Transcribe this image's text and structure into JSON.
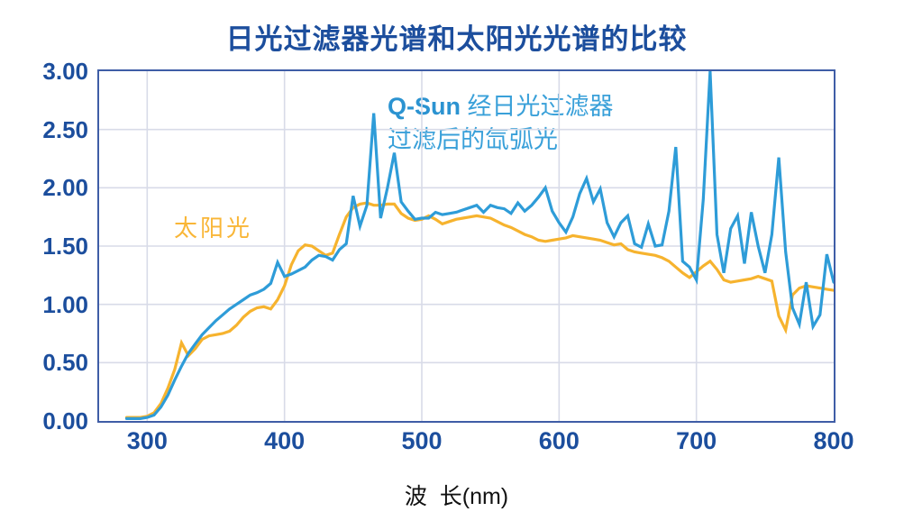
{
  "title": "日光过滤器光谱和太阳光光谱的比较",
  "colors": {
    "title_text": "#1c4e9d",
    "tick_text": "#1c4e9d",
    "plot_border": "#3f5da6",
    "gridline": "#d8dbe8",
    "qsun_line": "#2e9cd8",
    "sunlight_line": "#f6b32e",
    "qsun_label_text": "#39a0d9",
    "sunlight_label_text": "#f9b637",
    "x_axis_title_text": "#111111"
  },
  "legend": {
    "qsun_bold": "Q-Sun",
    "qsun_rest": " 经日光过滤器",
    "qsun_line2": "过滤后的氙弧光",
    "sunlight": "太阳光"
  },
  "x_axis": {
    "title": "波  长(nm)",
    "tick_labels": [
      "300",
      "400",
      "500",
      "600",
      "700",
      "800"
    ],
    "tick_values": [
      300,
      400,
      500,
      600,
      700,
      800
    ]
  },
  "y_axis": {
    "tick_labels": [
      "3.00",
      "2.50",
      "2.00",
      "1.50",
      "1.00",
      "0.50",
      "0.00"
    ],
    "tick_values": [
      3.0,
      2.5,
      2.0,
      1.5,
      1.0,
      0.5,
      0.0
    ]
  },
  "chart_data": {
    "type": "line",
    "title": "日光过滤器光谱和太阳光光谱的比较",
    "xlabel": "波 长(nm)",
    "ylabel": "",
    "xlim": [
      265,
      800
    ],
    "ylim": [
      0,
      3.0
    ],
    "x_gridlines": [
      300,
      400,
      500,
      600,
      700
    ],
    "y_gridlines": [
      0.5,
      1.0,
      1.5,
      2.0,
      2.5
    ],
    "grid": true,
    "legend_position": "annotations-inside",
    "x": [
      285,
      290,
      295,
      300,
      305,
      310,
      315,
      320,
      325,
      330,
      335,
      340,
      345,
      350,
      355,
      360,
      365,
      370,
      375,
      380,
      385,
      390,
      395,
      400,
      405,
      410,
      415,
      420,
      425,
      430,
      435,
      440,
      445,
      450,
      455,
      460,
      465,
      470,
      475,
      480,
      485,
      490,
      495,
      500,
      505,
      510,
      515,
      520,
      525,
      530,
      535,
      540,
      545,
      550,
      555,
      560,
      565,
      570,
      575,
      580,
      585,
      590,
      595,
      600,
      605,
      610,
      615,
      620,
      625,
      630,
      635,
      640,
      645,
      650,
      655,
      660,
      665,
      670,
      675,
      680,
      685,
      690,
      695,
      700,
      705,
      710,
      715,
      720,
      725,
      730,
      735,
      740,
      745,
      750,
      755,
      760,
      765,
      770,
      775,
      780,
      785,
      790,
      795,
      800
    ],
    "series": [
      {
        "name": "Q-Sun 经日光过滤器过滤后的氙弧光",
        "color": "#2e9cd8",
        "values": [
          0.02,
          0.02,
          0.02,
          0.03,
          0.05,
          0.12,
          0.22,
          0.35,
          0.47,
          0.58,
          0.66,
          0.74,
          0.8,
          0.86,
          0.91,
          0.96,
          1.0,
          1.04,
          1.08,
          1.1,
          1.13,
          1.18,
          1.36,
          1.24,
          1.26,
          1.29,
          1.32,
          1.38,
          1.42,
          1.41,
          1.38,
          1.47,
          1.52,
          1.93,
          1.67,
          1.85,
          2.64,
          1.74,
          2.0,
          2.3,
          1.88,
          1.8,
          1.73,
          1.74,
          1.74,
          1.79,
          1.77,
          1.78,
          1.79,
          1.81,
          1.83,
          1.85,
          1.79,
          1.85,
          1.83,
          1.82,
          1.78,
          1.87,
          1.8,
          1.85,
          1.92,
          2.0,
          1.8,
          1.7,
          1.62,
          1.75,
          1.95,
          2.08,
          1.88,
          1.99,
          1.7,
          1.58,
          1.7,
          1.76,
          1.52,
          1.49,
          1.69,
          1.5,
          1.51,
          1.8,
          2.35,
          1.37,
          1.32,
          1.21,
          1.9,
          3.0,
          1.6,
          1.27,
          1.65,
          1.76,
          1.35,
          1.79,
          1.5,
          1.27,
          1.6,
          2.26,
          1.45,
          0.97,
          0.83,
          1.19,
          0.81,
          0.91,
          1.43,
          1.19
        ]
      },
      {
        "name": "太阳光",
        "color": "#f6b32e",
        "values": [
          0.03,
          0.03,
          0.03,
          0.04,
          0.07,
          0.15,
          0.28,
          0.44,
          0.67,
          0.56,
          0.62,
          0.7,
          0.73,
          0.74,
          0.75,
          0.77,
          0.82,
          0.89,
          0.94,
          0.97,
          0.98,
          0.96,
          1.04,
          1.16,
          1.34,
          1.46,
          1.51,
          1.5,
          1.46,
          1.42,
          1.44,
          1.6,
          1.75,
          1.83,
          1.86,
          1.87,
          1.85,
          1.85,
          1.86,
          1.86,
          1.78,
          1.74,
          1.72,
          1.73,
          1.76,
          1.73,
          1.69,
          1.71,
          1.73,
          1.74,
          1.75,
          1.76,
          1.75,
          1.74,
          1.71,
          1.68,
          1.66,
          1.63,
          1.6,
          1.58,
          1.55,
          1.54,
          1.55,
          1.56,
          1.57,
          1.59,
          1.58,
          1.57,
          1.56,
          1.55,
          1.53,
          1.51,
          1.52,
          1.47,
          1.45,
          1.44,
          1.43,
          1.42,
          1.4,
          1.37,
          1.32,
          1.27,
          1.23,
          1.28,
          1.33,
          1.37,
          1.3,
          1.21,
          1.19,
          1.2,
          1.21,
          1.22,
          1.24,
          1.22,
          1.2,
          0.9,
          0.78,
          1.08,
          1.14,
          1.16,
          1.15,
          1.14,
          1.13,
          1.12
        ]
      }
    ]
  }
}
